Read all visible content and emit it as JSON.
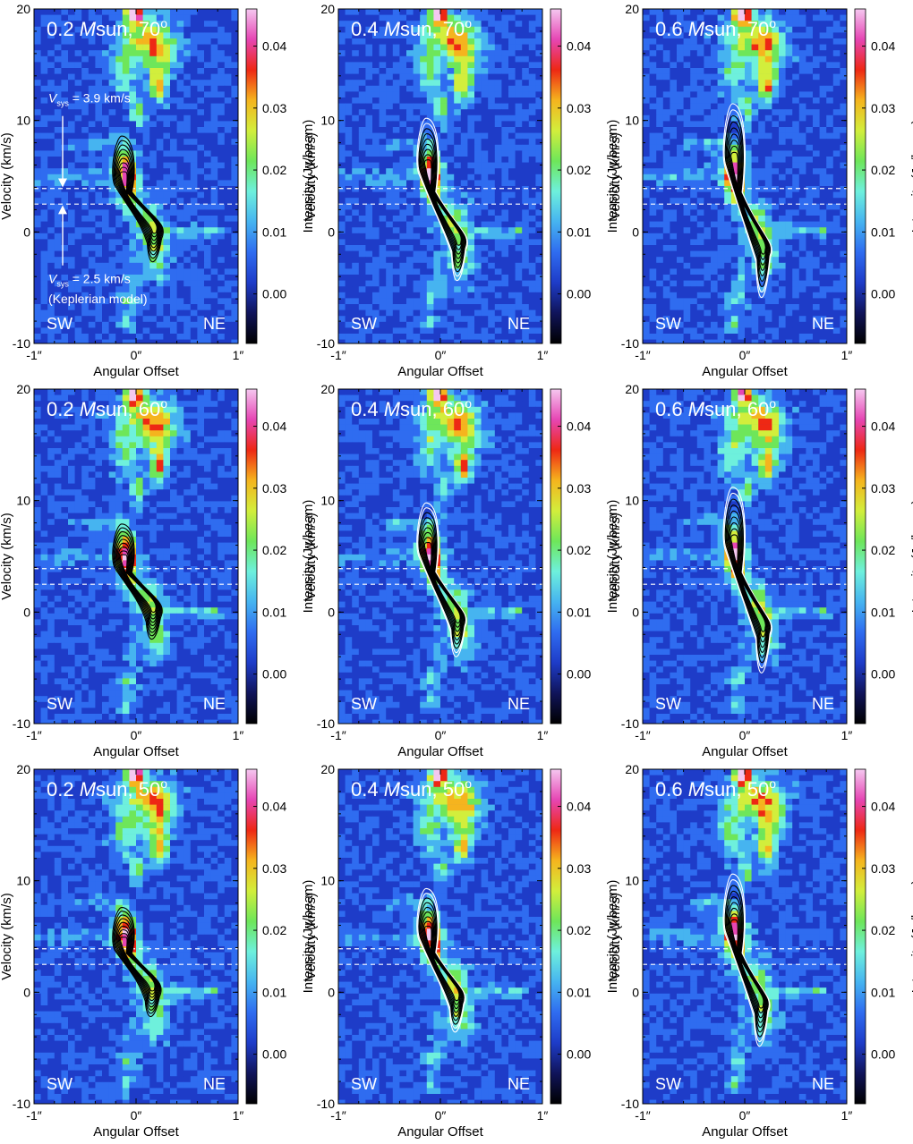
{
  "figure": {
    "colorbar_label": "Intensity (Jy/beam)",
    "colorbar_ticks": [
      "0.00",
      "0.01",
      "0.02",
      "0.03",
      "0.04"
    ],
    "colorbar_tick_values": [
      0.0,
      0.01,
      0.02,
      0.03,
      0.04
    ],
    "colorbar_range": [
      -0.008,
      0.046
    ],
    "colormap": [
      "#000000",
      "#10145a",
      "#1e3cc8",
      "#2f6cf0",
      "#46b4f0",
      "#6ef0dc",
      "#6ee65a",
      "#d2ee3c",
      "#f5b41e",
      "#ee2814",
      "#e646b4",
      "#f5c8f0"
    ],
    "labels": {
      "left": "SW",
      "right": "NE",
      "vsys_obs": "= 3.9 km/s",
      "vsys_model": "= 2.5 km/s",
      "vsys_symbol": "V",
      "vsys_sub": "sys",
      "model_note": "(Keplerian model)"
    },
    "colors": {
      "background_map": "#2a52e8",
      "contour_dark": "#000000",
      "contour_light": "#ffffff",
      "title_text": "#ffffff",
      "dashed_line": "#ffffff"
    }
  },
  "chart_data": [
    {
      "type": "heatmap",
      "title": "0.2 Msun, 70°",
      "mass": "0.2",
      "unit": "Msun",
      "incl": "70",
      "xlabel": "Angular Offset",
      "ylabel": "Velocity (km/s)",
      "xticks": [
        "-1″",
        "0″",
        "1″"
      ],
      "yticks": [
        "20",
        "10",
        "0",
        "-10"
      ],
      "xlim": [
        -1,
        1
      ],
      "ylim": [
        -10,
        20
      ],
      "vsys_lines": [
        3.9,
        2.5
      ],
      "model_peaks": [
        {
          "offset": -0.12,
          "velocity": 5.0
        },
        {
          "offset": 0.18,
          "velocity": 0.2
        }
      ],
      "model_vrange": [
        -3.3,
        8.6
      ]
    },
    {
      "type": "heatmap",
      "title": "0.4 Msun, 70°",
      "mass": "0.4",
      "unit": "Msun",
      "incl": "70",
      "xlabel": "Angular Offset",
      "ylabel": "Velocity (km/s)",
      "xticks": [
        "-1″",
        "0″",
        "1″"
      ],
      "yticks": [
        "20",
        "10",
        "0",
        "-10"
      ],
      "xlim": [
        -1,
        1
      ],
      "ylim": [
        -10,
        20
      ],
      "vsys_lines": [
        3.9,
        2.5
      ],
      "model_peaks": [
        {
          "offset": -0.12,
          "velocity": 6.0
        },
        {
          "offset": 0.18,
          "velocity": -0.8
        }
      ],
      "model_vrange": [
        -5.2,
        10.2
      ]
    },
    {
      "type": "heatmap",
      "title": "0.6 Msun, 70°",
      "mass": "0.6",
      "unit": "Msun",
      "incl": "70",
      "xlabel": "Angular Offset",
      "ylabel": "Velocity (km/s)",
      "xticks": [
        "-1″",
        "0″",
        "1″"
      ],
      "yticks": [
        "20",
        "10",
        "0",
        "-10"
      ],
      "xlim": [
        -1,
        1
      ],
      "ylim": [
        -10,
        20
      ],
      "vsys_lines": [
        3.9,
        2.5
      ],
      "model_peaks": [
        {
          "offset": -0.1,
          "velocity": 6.6
        },
        {
          "offset": 0.18,
          "velocity": -1.5
        }
      ],
      "model_vrange": [
        -7.0,
        11.5
      ]
    },
    {
      "type": "heatmap",
      "title": "0.2 Msun, 60°",
      "mass": "0.2",
      "unit": "Msun",
      "incl": "60",
      "xlabel": "Angular Offset",
      "ylabel": "Velocity (km/s)",
      "xticks": [
        "-1″",
        "0″",
        "1″"
      ],
      "yticks": [
        "20",
        "10",
        "0",
        "-10"
      ],
      "xlim": [
        -1,
        1
      ],
      "ylim": [
        -10,
        20
      ],
      "vsys_lines": [
        3.9,
        2.5
      ],
      "model_peaks": [
        {
          "offset": -0.12,
          "velocity": 4.8
        },
        {
          "offset": 0.17,
          "velocity": 0.3
        }
      ],
      "model_vrange": [
        -3.0,
        7.9
      ]
    },
    {
      "type": "heatmap",
      "title": "0.4 Msun, 60°",
      "mass": "0.4",
      "unit": "Msun",
      "incl": "60",
      "xlabel": "Angular Offset",
      "ylabel": "Velocity (km/s)",
      "xticks": [
        "-1″",
        "0″",
        "1″"
      ],
      "yticks": [
        "20",
        "10",
        "0",
        "-10"
      ],
      "xlim": [
        -1,
        1
      ],
      "ylim": [
        -10,
        20
      ],
      "vsys_lines": [
        3.9,
        2.5
      ],
      "model_peaks": [
        {
          "offset": -0.12,
          "velocity": 5.8
        },
        {
          "offset": 0.17,
          "velocity": -0.6
        }
      ],
      "model_vrange": [
        -4.8,
        9.8
      ]
    },
    {
      "type": "heatmap",
      "title": "0.6 Msun, 60°",
      "mass": "0.6",
      "unit": "Msun",
      "incl": "60",
      "xlabel": "Angular Offset",
      "ylabel": "Velocity (km/s)",
      "xticks": [
        "-1″",
        "0″",
        "1″"
      ],
      "yticks": [
        "20",
        "10",
        "0",
        "-10"
      ],
      "xlim": [
        -1,
        1
      ],
      "ylim": [
        -10,
        20
      ],
      "vsys_lines": [
        3.9,
        2.5
      ],
      "model_peaks": [
        {
          "offset": -0.1,
          "velocity": 6.4
        },
        {
          "offset": 0.18,
          "velocity": -1.3
        }
      ],
      "model_vrange": [
        -6.5,
        11.2
      ]
    },
    {
      "type": "heatmap",
      "title": "0.2 Msun, 50°",
      "mass": "0.2",
      "unit": "Msun",
      "incl": "50",
      "xlabel": "Angular Offset",
      "ylabel": "Velocity (km/s)",
      "xticks": [
        "-1″",
        "0″",
        "1″"
      ],
      "yticks": [
        "20",
        "10",
        "0",
        "-10"
      ],
      "xlim": [
        -1,
        1
      ],
      "ylim": [
        -10,
        20
      ],
      "vsys_lines": [
        3.9,
        2.5
      ],
      "model_peaks": [
        {
          "offset": -0.12,
          "velocity": 4.6
        },
        {
          "offset": 0.16,
          "velocity": 0.4
        }
      ],
      "model_vrange": [
        -2.7,
        7.6
      ]
    },
    {
      "type": "heatmap",
      "title": "0.4 Msun, 50°",
      "mass": "0.4",
      "unit": "Msun",
      "incl": "50",
      "xlabel": "Angular Offset",
      "ylabel": "Velocity (km/s)",
      "xticks": [
        "-1″",
        "0″",
        "1″"
      ],
      "yticks": [
        "20",
        "10",
        "0",
        "-10"
      ],
      "xlim": [
        -1,
        1
      ],
      "ylim": [
        -10,
        20
      ],
      "vsys_lines": [
        3.9,
        2.5
      ],
      "model_peaks": [
        {
          "offset": -0.12,
          "velocity": 5.5
        },
        {
          "offset": 0.16,
          "velocity": -0.4
        }
      ],
      "model_vrange": [
        -4.3,
        9.3
      ]
    },
    {
      "type": "heatmap",
      "title": "0.6 Msun, 50°",
      "mass": "0.6",
      "unit": "Msun",
      "incl": "50",
      "xlabel": "Angular Offset",
      "ylabel": "Velocity (km/s)",
      "xticks": [
        "-1″",
        "0″",
        "1″"
      ],
      "yticks": [
        "20",
        "10",
        "0",
        "-10"
      ],
      "xlim": [
        -1,
        1
      ],
      "ylim": [
        -10,
        20
      ],
      "vsys_lines": [
        3.9,
        2.5
      ],
      "model_peaks": [
        {
          "offset": -0.1,
          "velocity": 6.0
        },
        {
          "offset": 0.16,
          "velocity": -1.0
        }
      ],
      "model_vrange": [
        -5.8,
        10.6
      ]
    }
  ]
}
